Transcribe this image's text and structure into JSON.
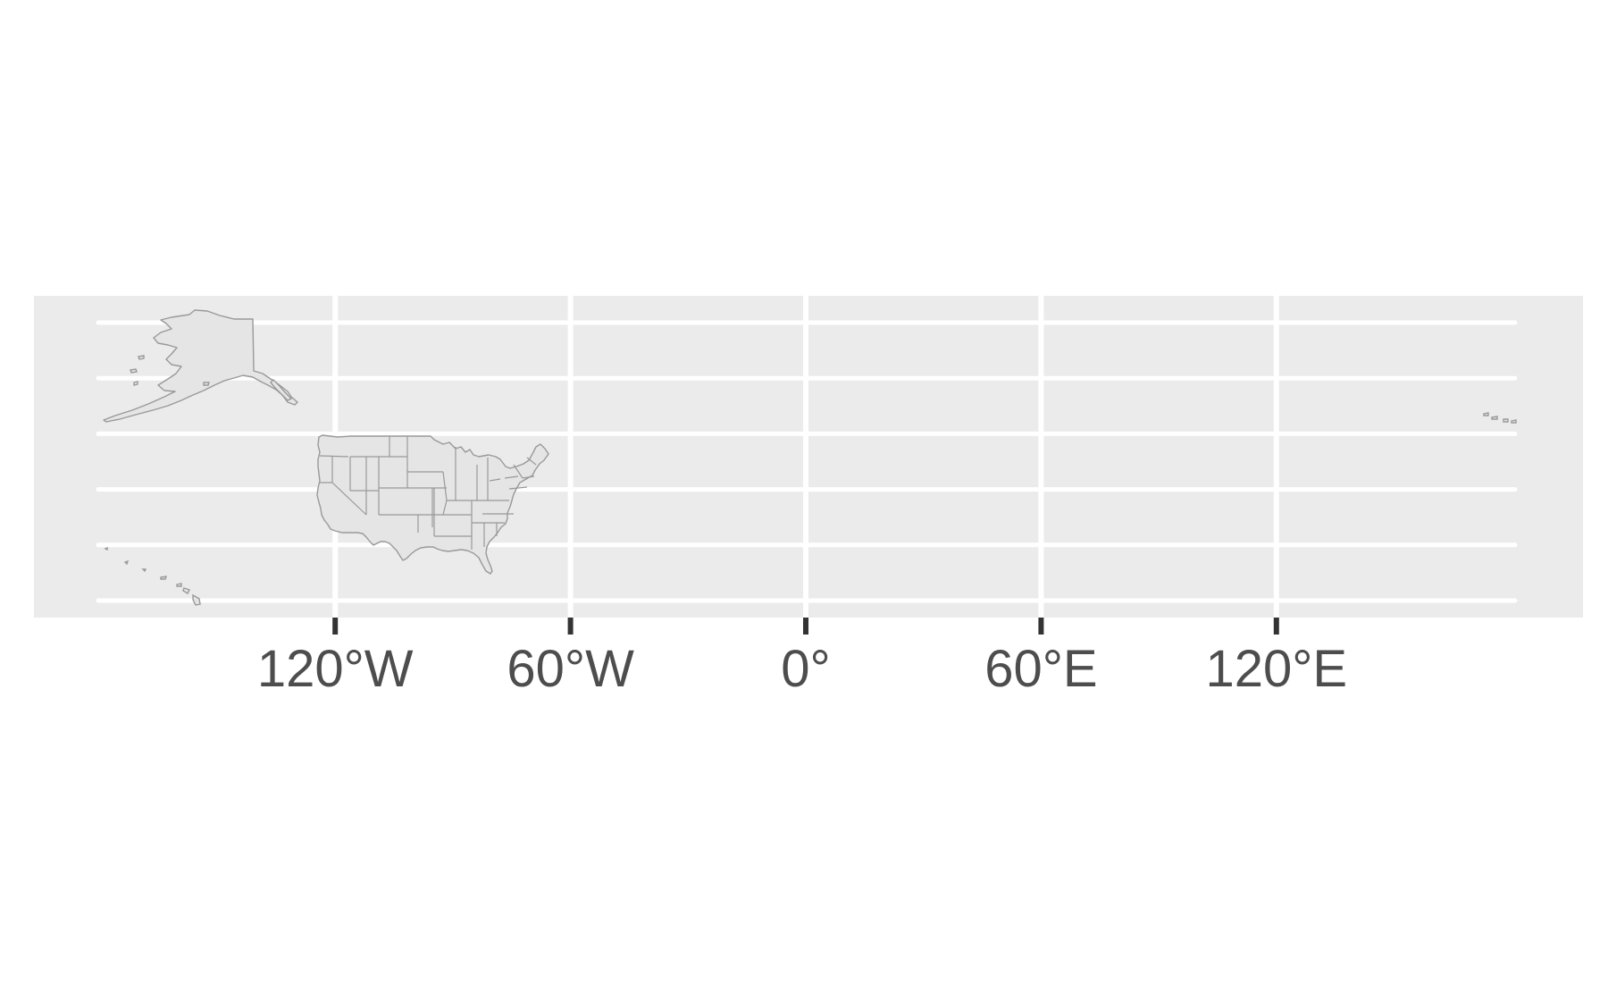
{
  "map": {
    "panel_background": "#ebebeb",
    "grid_color": "#ffffff",
    "land_fill": "#e5e5e5",
    "land_stroke": "#999999",
    "tick_color": "#333333",
    "label_color": "#4d4d4d",
    "x_axis": {
      "limits": [
        -180,
        180
      ],
      "breaks": [
        -120,
        -60,
        0,
        60,
        120
      ],
      "labels": [
        "120°W",
        "60°W",
        "0°",
        "60°E",
        "120°E"
      ]
    },
    "y_axis": {
      "limits": [
        18,
        72
      ],
      "gridlines": [
        20,
        30,
        40,
        50,
        60,
        70
      ],
      "labels": []
    },
    "regions": [
      "Alaska",
      "Contiguous United States",
      "Hawaii"
    ]
  }
}
